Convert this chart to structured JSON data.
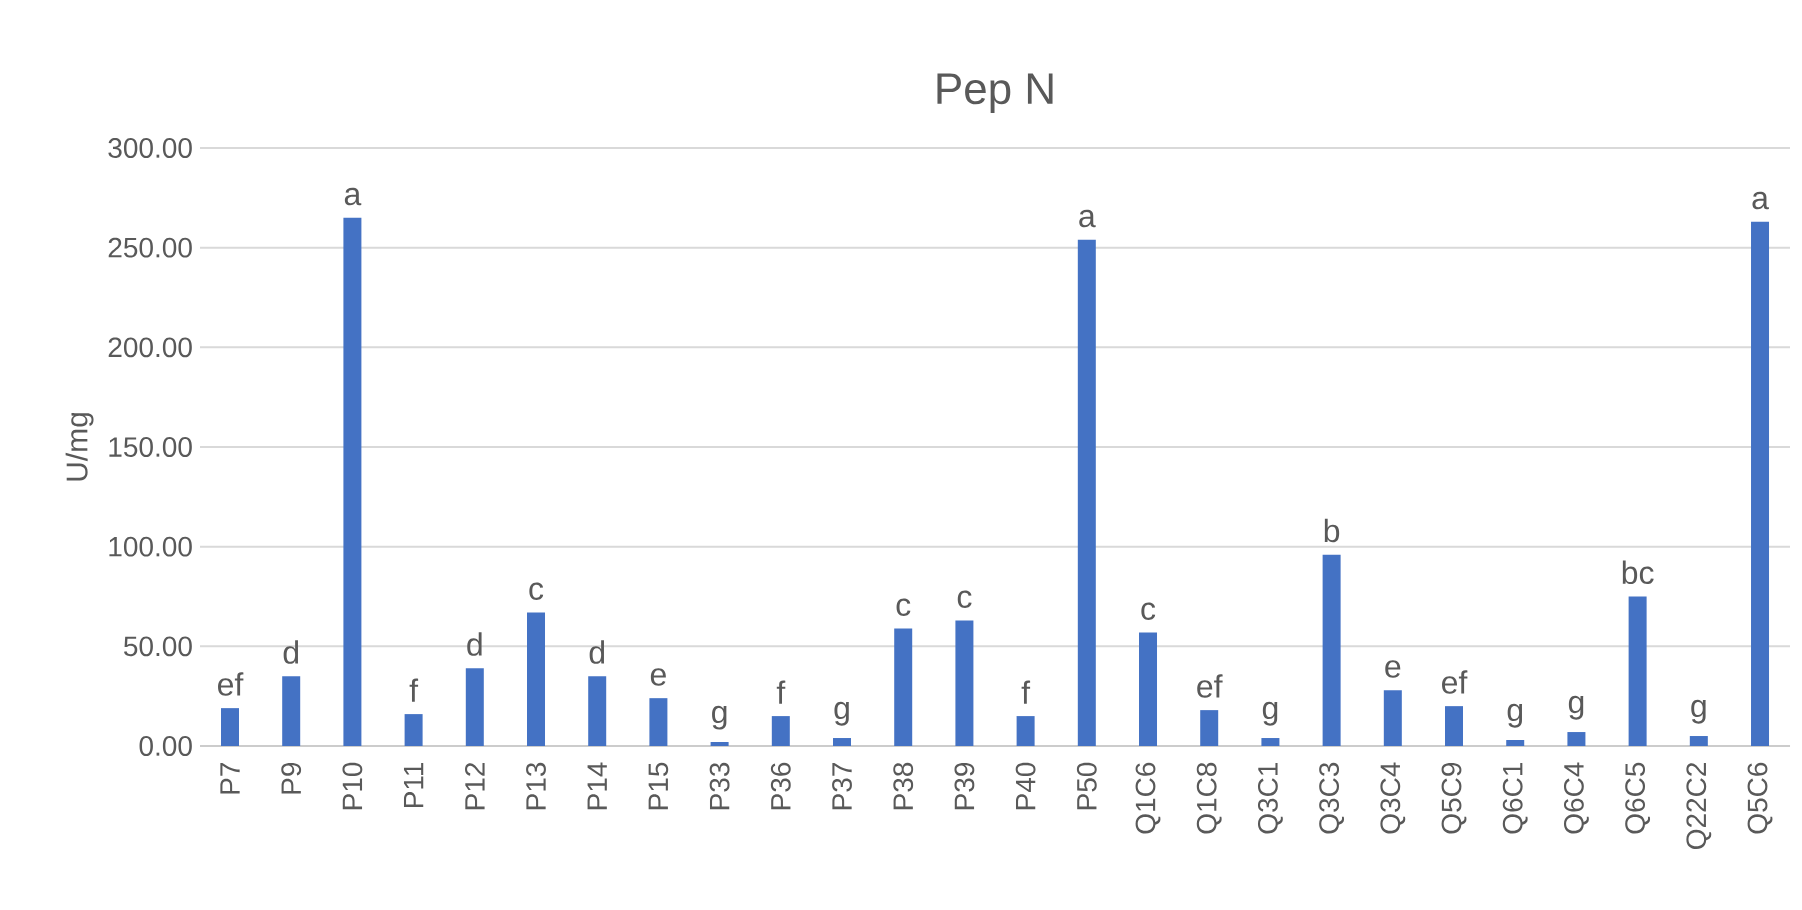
{
  "chart_data": {
    "type": "bar",
    "title": "Pep N",
    "ylabel": "U/mg",
    "categories": [
      "P7",
      "P9",
      "P10",
      "P11",
      "P12",
      "P13",
      "P14",
      "P15",
      "P33",
      "P36",
      "P37",
      "P38",
      "P39",
      "P40",
      "P50",
      "Q1C6",
      "Q1C8",
      "Q3C1",
      "Q3C3",
      "Q3C4",
      "Q5C9",
      "Q6C1",
      "Q6C4",
      "Q6C5",
      "Q22C2",
      "Q5C6"
    ],
    "values": [
      19,
      35,
      265,
      16,
      39,
      67,
      35,
      24,
      2,
      15,
      4,
      59,
      63,
      15,
      254,
      57,
      18,
      4,
      96,
      28,
      20,
      3,
      7,
      75,
      5,
      263
    ],
    "color": "#4472c4",
    "ylim": [
      0,
      300
    ],
    "yticks": [
      {
        "value": 0,
        "label": "0.00"
      },
      {
        "value": 50,
        "label": "50.00"
      },
      {
        "value": 100,
        "label": "100.00"
      },
      {
        "value": 150,
        "label": "150.00"
      },
      {
        "value": 200,
        "label": "200.00"
      },
      {
        "value": 250,
        "label": "250.00"
      },
      {
        "value": 300,
        "label": "300.00"
      }
    ],
    "grid": "y",
    "annotations": [
      {
        "text": "ef",
        "x": "P7",
        "y": 19
      },
      {
        "text": "d",
        "x": "P9",
        "y": 35
      },
      {
        "text": "a",
        "x": "P10",
        "y": 265
      },
      {
        "text": "f",
        "x": "P11",
        "y": 16
      },
      {
        "text": "d",
        "x": "P12",
        "y": 39
      },
      {
        "text": "c",
        "x": "P13",
        "y": 67
      },
      {
        "text": "d",
        "x": "P14",
        "y": 35
      },
      {
        "text": "e",
        "x": "P15",
        "y": 24
      },
      {
        "text": "g",
        "x": "P33",
        "y": 2
      },
      {
        "text": "f",
        "x": "P36",
        "y": 15
      },
      {
        "text": "g",
        "x": "P37",
        "y": 4
      },
      {
        "text": "c",
        "x": "P38",
        "y": 59
      },
      {
        "text": "c",
        "x": "P39",
        "y": 63
      },
      {
        "text": "f",
        "x": "P40",
        "y": 15
      },
      {
        "text": "a",
        "x": "P50",
        "y": 254
      },
      {
        "text": "c",
        "x": "Q1C6",
        "y": 57
      },
      {
        "text": "ef",
        "x": "Q1C8",
        "y": 18
      },
      {
        "text": "g",
        "x": "Q3C1",
        "y": 4
      },
      {
        "text": "b",
        "x": "Q3C3",
        "y": 96
      },
      {
        "text": "e",
        "x": "Q3C4",
        "y": 28
      },
      {
        "text": "ef",
        "x": "Q5C9",
        "y": 20
      },
      {
        "text": "g",
        "x": "Q6C1",
        "y": 3
      },
      {
        "text": "g",
        "x": "Q6C4",
        "y": 7
      },
      {
        "text": "bc",
        "x": "Q6C5",
        "y": 75
      },
      {
        "text": "g",
        "x": "Q22C2",
        "y": 5
      },
      {
        "text": "a",
        "x": "Q5C6",
        "y": 263
      }
    ]
  }
}
